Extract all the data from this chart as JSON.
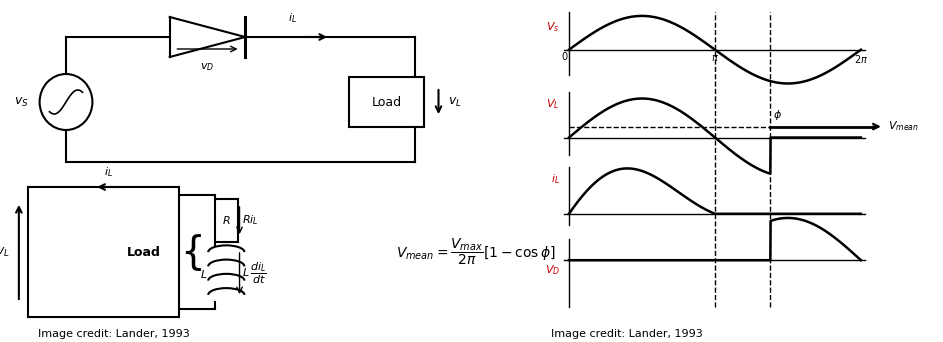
{
  "bg_color": "#ffffff",
  "line_color": "#000000",
  "red_color": "#cc0000",
  "fig_width": 9.43,
  "fig_height": 3.42,
  "credit_text": "Image credit: Lander, 1993",
  "vs_label": "$v_S$",
  "il_label_top": "$i_L$",
  "vd_label": "$v_D$",
  "load_label": "Load",
  "vl_label": "$v_L$",
  "il_label_bot": "$i_L$",
  "R_label": "$R$",
  "L_label": "$L$",
  "RiL_label": "$Ri_L$",
  "Load2_label": "Load"
}
